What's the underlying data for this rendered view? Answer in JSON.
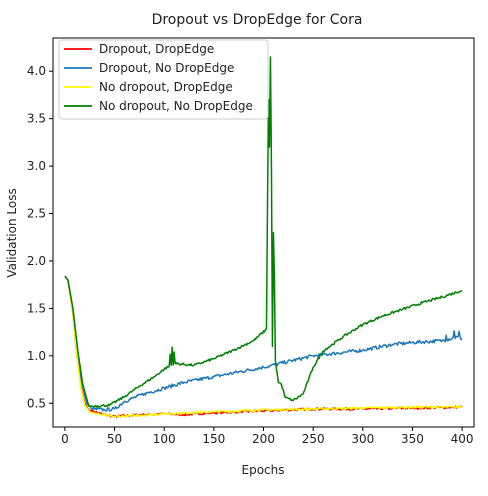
{
  "chart_data": {
    "type": "line",
    "title": "Dropout vs DropEdge for Cora",
    "xlabel": "Epochs",
    "ylabel": "Validation Loss",
    "xlim": [
      -12,
      412
    ],
    "ylim": [
      0.25,
      4.35
    ],
    "xticks": [
      0,
      50,
      100,
      150,
      200,
      250,
      300,
      350,
      400
    ],
    "yticks": [
      0.5,
      1.0,
      1.5,
      2.0,
      2.5,
      3.0,
      3.5,
      4.0
    ],
    "xtick_labels": [
      "0",
      "50",
      "100",
      "150",
      "200",
      "250",
      "300",
      "350",
      "400"
    ],
    "ytick_labels": [
      "0.5",
      "1.0",
      "1.5",
      "2.0",
      "2.5",
      "3.0",
      "3.5",
      "4.0"
    ],
    "grid": false,
    "legend_position": "upper-left",
    "series": [
      {
        "name": "Dropout, DropEdge",
        "color": "#ff0000",
        "noise": 0.012,
        "points": [
          [
            0,
            1.84
          ],
          [
            3,
            1.8
          ],
          [
            8,
            1.45
          ],
          [
            12,
            1.0
          ],
          [
            16,
            0.68
          ],
          [
            20,
            0.5
          ],
          [
            24,
            0.43
          ],
          [
            30,
            0.41
          ],
          [
            40,
            0.38
          ],
          [
            50,
            0.36
          ],
          [
            60,
            0.37
          ],
          [
            80,
            0.38
          ],
          [
            100,
            0.39
          ],
          [
            120,
            0.38
          ],
          [
            150,
            0.4
          ],
          [
            200,
            0.42
          ],
          [
            250,
            0.44
          ],
          [
            300,
            0.44
          ],
          [
            350,
            0.45
          ],
          [
            400,
            0.46
          ]
        ]
      },
      {
        "name": "Dropout, No DropEdge",
        "color": "#1f77b4",
        "noise": 0.018,
        "points": [
          [
            0,
            1.84
          ],
          [
            3,
            1.8
          ],
          [
            8,
            1.5
          ],
          [
            13,
            1.05
          ],
          [
            17,
            0.72
          ],
          [
            22,
            0.5
          ],
          [
            28,
            0.44
          ],
          [
            40,
            0.43
          ],
          [
            50,
            0.44
          ],
          [
            60,
            0.52
          ],
          [
            80,
            0.6
          ],
          [
            100,
            0.66
          ],
          [
            120,
            0.72
          ],
          [
            150,
            0.78
          ],
          [
            200,
            0.88
          ],
          [
            250,
            1.0
          ],
          [
            300,
            1.06
          ],
          [
            330,
            1.12
          ],
          [
            350,
            1.14
          ],
          [
            380,
            1.16
          ],
          [
            395,
            1.2
          ],
          [
            400,
            1.18
          ]
        ],
        "spikes": [
          [
            384,
            0.06
          ],
          [
            392,
            0.08
          ],
          [
            397,
            0.06
          ]
        ]
      },
      {
        "name": "No dropout, DropEdge",
        "color": "#ffff00",
        "noise": 0.012,
        "points": [
          [
            0,
            1.84
          ],
          [
            3,
            1.8
          ],
          [
            8,
            1.45
          ],
          [
            12,
            1.0
          ],
          [
            16,
            0.66
          ],
          [
            20,
            0.48
          ],
          [
            25,
            0.41
          ],
          [
            35,
            0.38
          ],
          [
            50,
            0.36
          ],
          [
            70,
            0.37
          ],
          [
            100,
            0.39
          ],
          [
            150,
            0.41
          ],
          [
            200,
            0.43
          ],
          [
            250,
            0.44
          ],
          [
            300,
            0.45
          ],
          [
            350,
            0.46
          ],
          [
            400,
            0.46
          ]
        ]
      },
      {
        "name": "No dropout, No DropEdge",
        "color": "#008000",
        "noise": 0.012,
        "points": [
          [
            0,
            1.84
          ],
          [
            3,
            1.8
          ],
          [
            8,
            1.5
          ],
          [
            13,
            1.05
          ],
          [
            18,
            0.7
          ],
          [
            24,
            0.47
          ],
          [
            30,
            0.47
          ],
          [
            45,
            0.48
          ],
          [
            60,
            0.57
          ],
          [
            75,
            0.68
          ],
          [
            90,
            0.78
          ],
          [
            100,
            0.86
          ],
          [
            110,
            0.92
          ],
          [
            130,
            0.9
          ],
          [
            150,
            0.97
          ],
          [
            170,
            1.06
          ],
          [
            190,
            1.16
          ],
          [
            203,
            1.28
          ],
          [
            205,
            3.7
          ],
          [
            206,
            3.2
          ],
          [
            207,
            4.15
          ],
          [
            208,
            3.0
          ],
          [
            209,
            1.1
          ],
          [
            210,
            2.3
          ],
          [
            211,
            1.8
          ],
          [
            212,
            0.95
          ],
          [
            215,
            0.72
          ],
          [
            218,
            0.7
          ],
          [
            222,
            0.56
          ],
          [
            230,
            0.53
          ],
          [
            240,
            0.6
          ],
          [
            250,
            0.88
          ],
          [
            260,
            1.05
          ],
          [
            280,
            1.2
          ],
          [
            300,
            1.33
          ],
          [
            320,
            1.42
          ],
          [
            340,
            1.49
          ],
          [
            360,
            1.56
          ],
          [
            380,
            1.62
          ],
          [
            400,
            1.69
          ]
        ],
        "spikes": [
          [
            106,
            0.12
          ],
          [
            108,
            0.18
          ],
          [
            110,
            0.12
          ],
          [
            204,
            0.05
          ]
        ]
      }
    ]
  }
}
